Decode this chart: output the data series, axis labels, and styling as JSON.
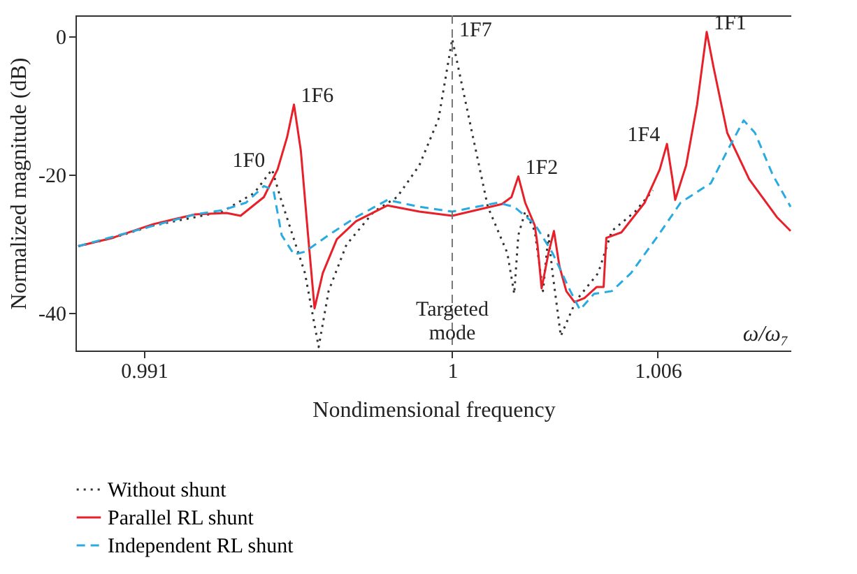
{
  "chart_data": {
    "type": "line",
    "xlabel": "Nondimensional frequency",
    "ylabel": "Normalized magnitude (dB)",
    "xlim": [
      0.989,
      1.0099
    ],
    "ylim": [
      -45.5,
      3
    ],
    "xticks": [
      0.991,
      1,
      1.006
    ],
    "yticks": [
      0,
      -20,
      -40
    ],
    "grid": false,
    "legend": "bottom",
    "series": [
      {
        "name": "Without shunt",
        "color": "#333333",
        "line_style": "dotted",
        "x": [
          0.98908,
          0.99008,
          0.99128,
          0.99249,
          0.99329,
          0.99422,
          0.99474,
          0.99498,
          0.9953,
          0.9957,
          0.9961,
          0.99639,
          0.99691,
          0.99771,
          0.99839,
          0.99904,
          0.9996,
          1.0,
          1.00052,
          1.00104,
          1.00161,
          1.00181,
          1.00193,
          1.00213,
          1.00241,
          1.00265,
          1.00281,
          1.00293,
          1.00317,
          1.00361,
          1.00426,
          1.00466,
          1.00534,
          1.00586
        ],
        "values": [
          -30.4,
          -29.2,
          -27.4,
          -26.2,
          -25.4,
          -22.7,
          -19.3,
          -23.3,
          -28.2,
          -34.3,
          -45,
          -36.9,
          -30.2,
          -25.4,
          -23.3,
          -18.7,
          -12,
          -0.4,
          -12.6,
          -24.7,
          -31.4,
          -37.3,
          -28.8,
          -25.4,
          -28.2,
          -36.9,
          -28.8,
          -34.3,
          -43.4,
          -38.3,
          -34.3,
          -28.2,
          -25.4,
          -22.3
        ]
      },
      {
        "name": "Parallel RL shunt",
        "color": "#e8202a",
        "line_style": "solid",
        "x": [
          0.98908,
          0.99008,
          0.99128,
          0.99249,
          0.99341,
          0.99382,
          0.9945,
          0.9949,
          0.99518,
          0.99538,
          0.99558,
          0.99578,
          0.99598,
          0.99622,
          0.99663,
          0.99719,
          0.99811,
          0.99904,
          1.0,
          1.00145,
          1.00173,
          1.00193,
          1.00213,
          1.00241,
          1.00249,
          1.00261,
          1.00281,
          1.00297,
          1.00313,
          1.00333,
          1.00357,
          1.00386,
          1.00422,
          1.00442,
          1.0045,
          1.00494,
          1.00562,
          1.00606,
          1.00627,
          1.00643,
          1.00651,
          1.00683,
          1.00715,
          1.00743,
          1.00763,
          1.00803,
          1.00867,
          1.00948,
          1.00988
        ],
        "values": [
          -30.4,
          -29.2,
          -27.2,
          -25.8,
          -25.6,
          -26,
          -23.3,
          -19.3,
          -14.6,
          -9.9,
          -16.6,
          -28.2,
          -39.4,
          -34.3,
          -29.4,
          -26.8,
          -24.5,
          -25.4,
          -26,
          -24.3,
          -23.3,
          -20.3,
          -24.1,
          -27.4,
          -30.2,
          -36.5,
          -31.4,
          -28.2,
          -33.3,
          -36.9,
          -38.5,
          -37.9,
          -36.3,
          -36.3,
          -29.2,
          -28.4,
          -24.1,
          -19.3,
          -15.6,
          -20.7,
          -23.7,
          -18.7,
          -9.9,
          0.6,
          -4.5,
          -14,
          -20.7,
          -26.2,
          -28.2
        ]
      },
      {
        "name": "Independent RL shunt",
        "color": "#29abe2",
        "line_style": "dashed",
        "x": [
          0.98908,
          0.99249,
          0.99329,
          0.99398,
          0.9945,
          0.99478,
          0.99502,
          0.99538,
          0.9957,
          0.99639,
          0.99719,
          0.99811,
          0.99904,
          1.0,
          1.00133,
          1.00181,
          1.00241,
          1.00293,
          1.00345,
          1.00373,
          1.00414,
          1.00466,
          1.00522,
          1.00602,
          1.00667,
          1.00735,
          1.00755,
          1.00803,
          1.00851,
          1.00884,
          1.00936,
          1.00988
        ],
        "values": [
          -30.4,
          -25.8,
          -25.2,
          -24.1,
          -21.7,
          -22.3,
          -28.8,
          -31.6,
          -31.2,
          -28.8,
          -26.2,
          -23.7,
          -24.7,
          -25.4,
          -24.1,
          -24.7,
          -27.2,
          -31.4,
          -36.9,
          -39.6,
          -37.3,
          -36.9,
          -34.3,
          -28.8,
          -24.1,
          -21.9,
          -21.3,
          -16.6,
          -12.2,
          -14,
          -20.1,
          -24.7
        ]
      }
    ],
    "ref_lines": [
      {
        "axis": "x",
        "value": 1,
        "label": "Targeted mode",
        "color": "#777777",
        "line_style": "dashed"
      }
    ],
    "annotations": [
      {
        "text": "1F0",
        "x": 0.99474,
        "y": -19.3
      },
      {
        "text": "1F6",
        "x": 0.99538,
        "y": -9.9
      },
      {
        "text": "1F7",
        "x": 1.0,
        "y": -0.4
      },
      {
        "text": "1F2",
        "x": 1.00193,
        "y": -20.3
      },
      {
        "text": "1F4",
        "x": 1.00627,
        "y": -15.6
      },
      {
        "text": "1F1",
        "x": 1.00743,
        "y": 0.6
      },
      "ω/ω₇"
    ]
  }
}
